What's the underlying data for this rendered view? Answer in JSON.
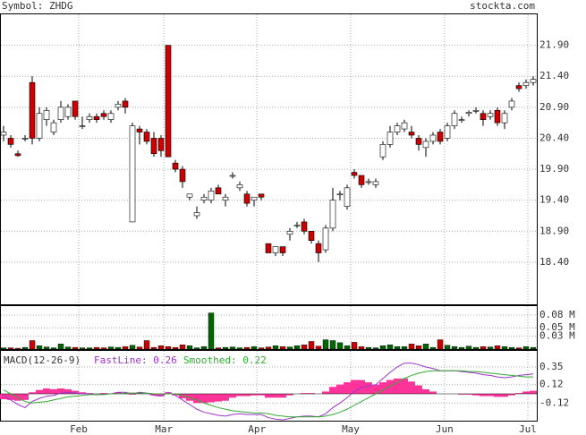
{
  "header": {
    "symbol": "Symbol: ZHDG",
    "site": "stockta.com"
  },
  "chart_data": [
    {
      "type": "candlestick",
      "open": [
        20.45,
        20.4,
        20.15,
        20.4,
        21.3,
        20.4,
        20.7,
        20.5,
        20.7,
        20.75,
        21.0,
        20.6,
        20.7,
        20.75,
        20.8,
        20.7,
        20.9,
        21.0,
        19.05,
        20.55,
        20.5,
        20.4,
        20.4,
        21.9,
        20.0,
        19.9,
        19.45,
        19.15,
        19.4,
        19.4,
        19.6,
        19.4,
        19.8,
        19.6,
        19.5,
        19.4,
        19.5,
        18.7,
        18.55,
        18.65,
        18.85,
        19.0,
        19.05,
        18.9,
        18.7,
        18.6,
        18.95,
        19.5,
        19.3,
        19.85,
        19.8,
        19.7,
        19.65,
        20.1,
        20.3,
        20.5,
        20.55,
        20.5,
        20.4,
        20.25,
        20.35,
        20.5,
        20.4,
        20.6,
        20.7,
        20.8,
        20.85,
        20.8,
        20.75,
        20.85,
        20.65,
        20.9,
        21.25,
        21.25,
        21.3
      ],
      "high": [
        20.6,
        20.45,
        20.2,
        20.45,
        21.4,
        20.9,
        20.9,
        20.7,
        21.0,
        20.95,
        21.0,
        20.75,
        20.8,
        20.8,
        20.85,
        20.85,
        21.0,
        21.05,
        20.65,
        20.6,
        20.55,
        20.5,
        20.45,
        21.9,
        20.05,
        19.95,
        19.5,
        19.3,
        19.5,
        19.6,
        19.65,
        19.5,
        19.85,
        19.7,
        19.55,
        19.45,
        19.5,
        18.7,
        18.65,
        18.65,
        18.95,
        19.05,
        19.1,
        18.9,
        18.75,
        19.0,
        19.6,
        19.55,
        19.65,
        19.9,
        19.8,
        19.75,
        19.75,
        20.35,
        20.6,
        20.65,
        20.7,
        20.6,
        20.45,
        20.4,
        20.5,
        20.55,
        20.65,
        20.85,
        20.75,
        20.85,
        20.9,
        20.85,
        20.85,
        20.9,
        20.85,
        21.05,
        21.3,
        21.35,
        21.4
      ],
      "low": [
        20.35,
        20.25,
        20.1,
        20.35,
        20.3,
        20.35,
        20.6,
        20.45,
        20.65,
        20.7,
        20.7,
        20.55,
        20.65,
        20.65,
        20.7,
        20.65,
        20.85,
        20.8,
        19.05,
        20.3,
        20.3,
        20.1,
        20.1,
        20.1,
        19.85,
        19.6,
        19.4,
        19.1,
        19.35,
        19.35,
        19.5,
        19.3,
        19.75,
        19.55,
        19.3,
        19.3,
        19.4,
        18.55,
        18.5,
        18.5,
        18.75,
        18.95,
        18.85,
        18.7,
        18.4,
        18.55,
        18.9,
        19.4,
        19.25,
        19.75,
        19.6,
        19.65,
        19.6,
        20.05,
        20.25,
        20.45,
        20.5,
        20.4,
        20.2,
        20.1,
        20.3,
        20.3,
        20.35,
        20.55,
        20.65,
        20.75,
        20.8,
        20.6,
        20.7,
        20.6,
        20.55,
        20.85,
        21.15,
        21.2,
        21.25
      ],
      "close": [
        20.5,
        20.3,
        20.12,
        20.4,
        20.4,
        20.8,
        20.85,
        20.65,
        20.9,
        20.9,
        20.75,
        20.6,
        20.75,
        20.7,
        20.75,
        20.8,
        20.95,
        20.9,
        20.6,
        20.5,
        20.35,
        20.15,
        20.2,
        20.1,
        19.9,
        19.7,
        19.5,
        19.2,
        19.45,
        19.55,
        19.5,
        19.45,
        19.8,
        19.65,
        19.35,
        19.45,
        19.45,
        18.55,
        18.65,
        18.55,
        18.9,
        19.0,
        18.9,
        18.75,
        18.55,
        18.95,
        19.4,
        19.5,
        19.6,
        19.8,
        19.65,
        19.7,
        19.7,
        20.3,
        20.5,
        20.6,
        20.65,
        20.45,
        20.3,
        20.35,
        20.45,
        20.35,
        20.6,
        20.8,
        20.7,
        20.82,
        20.85,
        20.7,
        20.8,
        20.65,
        20.8,
        21.0,
        21.2,
        21.3,
        21.35
      ],
      "up_color": "#ffffff",
      "down_color": "#cc0000",
      "ylim": [
        17.72,
        22.4
      ],
      "yticks": [
        {
          "value": 21.9,
          "label": "21.90"
        },
        {
          "value": 21.4,
          "label": "21.40"
        },
        {
          "value": 20.9,
          "label": "20.90"
        },
        {
          "value": 20.4,
          "label": "20.40"
        },
        {
          "value": 19.9,
          "label": "19.90"
        },
        {
          "value": 19.4,
          "label": "19.40"
        },
        {
          "value": 18.9,
          "label": "18.90"
        },
        {
          "value": 18.4,
          "label": "18.40"
        }
      ],
      "xticks": [
        {
          "value": 10.5,
          "label": "Feb"
        },
        {
          "value": 22.4,
          "label": "Mar"
        },
        {
          "value": 35.4,
          "label": "Apr"
        },
        {
          "value": 48.5,
          "label": "May"
        },
        {
          "value": 61.6,
          "label": "Jun"
        },
        {
          "value": 73.25,
          "label": "Jul"
        }
      ],
      "grid": true
    },
    {
      "type": "volume",
      "values": [
        0.003,
        0.003,
        0.002,
        0.004,
        0.02,
        0.008,
        0.005,
        0.003,
        0.012,
        0.005,
        0.004,
        0.003,
        0.003,
        0.004,
        0.003,
        0.005,
        0.004,
        0.006,
        0.009,
        0.005,
        0.02,
        0.004,
        0.008,
        0.006,
        0.004,
        0.01,
        0.008,
        0.003,
        0.006,
        0.085,
        0.003,
        0.004,
        0.005,
        0.003,
        0.004,
        0.006,
        0.003,
        0.005,
        0.008,
        0.006,
        0.005,
        0.008,
        0.01,
        0.018,
        0.007,
        0.022,
        0.02,
        0.015,
        0.008,
        0.016,
        0.006,
        0.004,
        0.003,
        0.008,
        0.01,
        0.006,
        0.006,
        0.012,
        0.008,
        0.012,
        0.004,
        0.022,
        0.009,
        0.006,
        0.004,
        0.007,
        0.004,
        0.006,
        0.005,
        0.008,
        0.006,
        0.004,
        0.003,
        0.006,
        0.004
      ],
      "up_color": "#006600",
      "down_color": "#cc0000",
      "ylim": [
        0,
        0.101
      ],
      "yticks": [
        {
          "value": 0.08,
          "label": "0.08 M"
        },
        {
          "value": 0.05,
          "label": "0.05 M"
        },
        {
          "value": 0.03,
          "label": "0.03 M"
        }
      ]
    },
    {
      "type": "macd",
      "title": "MACD(12-26-9)",
      "series": [
        {
          "name": "FastLine: 0.26",
          "color": "#9933cc",
          "values": [
            -0.02,
            -0.08,
            -0.14,
            -0.18,
            -0.1,
            -0.06,
            -0.03,
            -0.02,
            0.01,
            0.02,
            0.01,
            0.0,
            0.0,
            -0.01,
            0.0,
            0.0,
            0.02,
            0.02,
            0.0,
            0.02,
            0.01,
            -0.02,
            -0.03,
            0.02,
            -0.02,
            -0.08,
            -0.14,
            -0.2,
            -0.24,
            -0.26,
            -0.28,
            -0.29,
            -0.27,
            -0.26,
            -0.27,
            -0.27,
            -0.27,
            -0.31,
            -0.33,
            -0.34,
            -0.32,
            -0.3,
            -0.29,
            -0.29,
            -0.3,
            -0.26,
            -0.18,
            -0.12,
            -0.05,
            0.03,
            0.08,
            0.1,
            0.12,
            0.2,
            0.28,
            0.35,
            0.4,
            0.4,
            0.38,
            0.35,
            0.33,
            0.3,
            0.3,
            0.3,
            0.29,
            0.28,
            0.27,
            0.25,
            0.24,
            0.22,
            0.21,
            0.22,
            0.24,
            0.25,
            0.26
          ]
        },
        {
          "name": "Smoothed: 0.22",
          "color": "#33aa33",
          "values": [
            0.05,
            0.0,
            -0.05,
            -0.1,
            -0.12,
            -0.11,
            -0.1,
            -0.08,
            -0.06,
            -0.04,
            -0.03,
            -0.02,
            -0.01,
            -0.01,
            -0.01,
            0.0,
            0.0,
            0.01,
            0.01,
            0.01,
            0.01,
            0.0,
            0.0,
            0.0,
            0.0,
            -0.02,
            -0.05,
            -0.08,
            -0.12,
            -0.15,
            -0.18,
            -0.2,
            -0.22,
            -0.23,
            -0.24,
            -0.25,
            -0.25,
            -0.26,
            -0.28,
            -0.29,
            -0.3,
            -0.3,
            -0.3,
            -0.3,
            -0.3,
            -0.29,
            -0.27,
            -0.24,
            -0.2,
            -0.15,
            -0.1,
            -0.05,
            0.0,
            0.05,
            0.1,
            0.15,
            0.2,
            0.24,
            0.27,
            0.29,
            0.3,
            0.3,
            0.3,
            0.3,
            0.3,
            0.29,
            0.29,
            0.28,
            0.27,
            0.26,
            0.25,
            0.24,
            0.23,
            0.22,
            0.22
          ]
        }
      ],
      "histogram": [
        -0.07,
        -0.08,
        -0.09,
        -0.08,
        0.02,
        0.05,
        0.07,
        0.06,
        0.07,
        0.06,
        0.04,
        0.02,
        0.01,
        0.0,
        0.01,
        0.0,
        0.02,
        0.01,
        -0.01,
        0.01,
        0.0,
        -0.02,
        -0.03,
        0.02,
        -0.02,
        -0.06,
        -0.09,
        -0.12,
        -0.12,
        -0.11,
        -0.1,
        -0.09,
        -0.05,
        -0.03,
        -0.03,
        -0.02,
        -0.02,
        -0.05,
        -0.05,
        -0.05,
        -0.02,
        0.0,
        0.01,
        0.01,
        0.0,
        0.03,
        0.09,
        0.12,
        0.15,
        0.18,
        0.18,
        0.15,
        0.12,
        0.15,
        0.18,
        0.2,
        0.2,
        0.16,
        0.11,
        0.06,
        0.03,
        0.0,
        0.0,
        0.0,
        -0.01,
        -0.01,
        -0.02,
        -0.03,
        -0.03,
        -0.04,
        -0.04,
        -0.02,
        0.01,
        0.03,
        0.04
      ],
      "histogram_color": "#ff3399",
      "ylim": [
        -0.35,
        0.56
      ],
      "yticks": [
        0.35,
        0.12,
        -0.12
      ]
    }
  ]
}
